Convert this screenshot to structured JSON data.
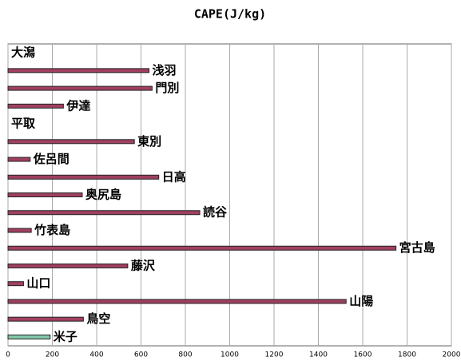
{
  "chart_data": {
    "type": "bar",
    "orientation": "horizontal",
    "title": "CAPE(J/kg)",
    "categories": [
      "大潟",
      "浅羽",
      "門別",
      "伊達",
      "平取",
      "東別",
      "佐呂間",
      "日高",
      "奥尻島",
      "読谷",
      "竹表島",
      "宮古島",
      "藤沢",
      "山口",
      "山陽",
      "鳥空",
      "米子"
    ],
    "values": [
      0,
      636,
      650,
      250,
      0,
      570,
      100,
      680,
      335,
      865,
      105,
      1750,
      540,
      70,
      1525,
      340,
      190
    ],
    "colors": [
      "#a04060",
      "#a04060",
      "#a04060",
      "#a04060",
      "#a04060",
      "#a04060",
      "#a04060",
      "#a04060",
      "#a04060",
      "#a04060",
      "#a04060",
      "#a04060",
      "#a04060",
      "#a04060",
      "#a04060",
      "#a04060",
      "#80c8a8"
    ],
    "xlim": [
      0,
      2000
    ],
    "xticks": [
      0,
      200,
      400,
      600,
      800,
      1000,
      1200,
      1400,
      1600,
      1800,
      2000
    ],
    "grid": true
  }
}
